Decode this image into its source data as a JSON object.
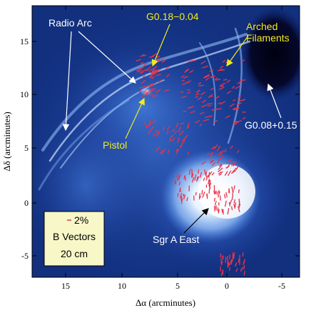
{
  "figure": {
    "axes": {
      "x_title": "Δα (arcminutes)",
      "y_title": "Δδ (arcminutes)",
      "x_ticks": [
        "15",
        "10",
        "5",
        "0",
        "-5"
      ],
      "y_ticks": [
        "15",
        "10",
        "5",
        "0",
        "-5"
      ]
    },
    "labels": {
      "radio_arc": "Radio Arc",
      "g018": "G0.18−0.04",
      "arched_line1": "Arched",
      "arched_line2": "Filaments",
      "g008": "G0.08+0.15",
      "pistol": "Pistol",
      "sgr_a_east": "Sgr A East"
    },
    "legend": {
      "percent": "2%",
      "line2": "B Vectors",
      "line3": "20 cm"
    },
    "colors": {
      "background_dark": "#0a1a5c",
      "emission_mid": "#3f7fe6",
      "emission_bright": "#e8f4ff",
      "vectors": "#e8334a",
      "label_white": "#ffffff",
      "label_yellow": "#f2ea1c",
      "legend_bg": "#f7f7c8"
    }
  }
}
